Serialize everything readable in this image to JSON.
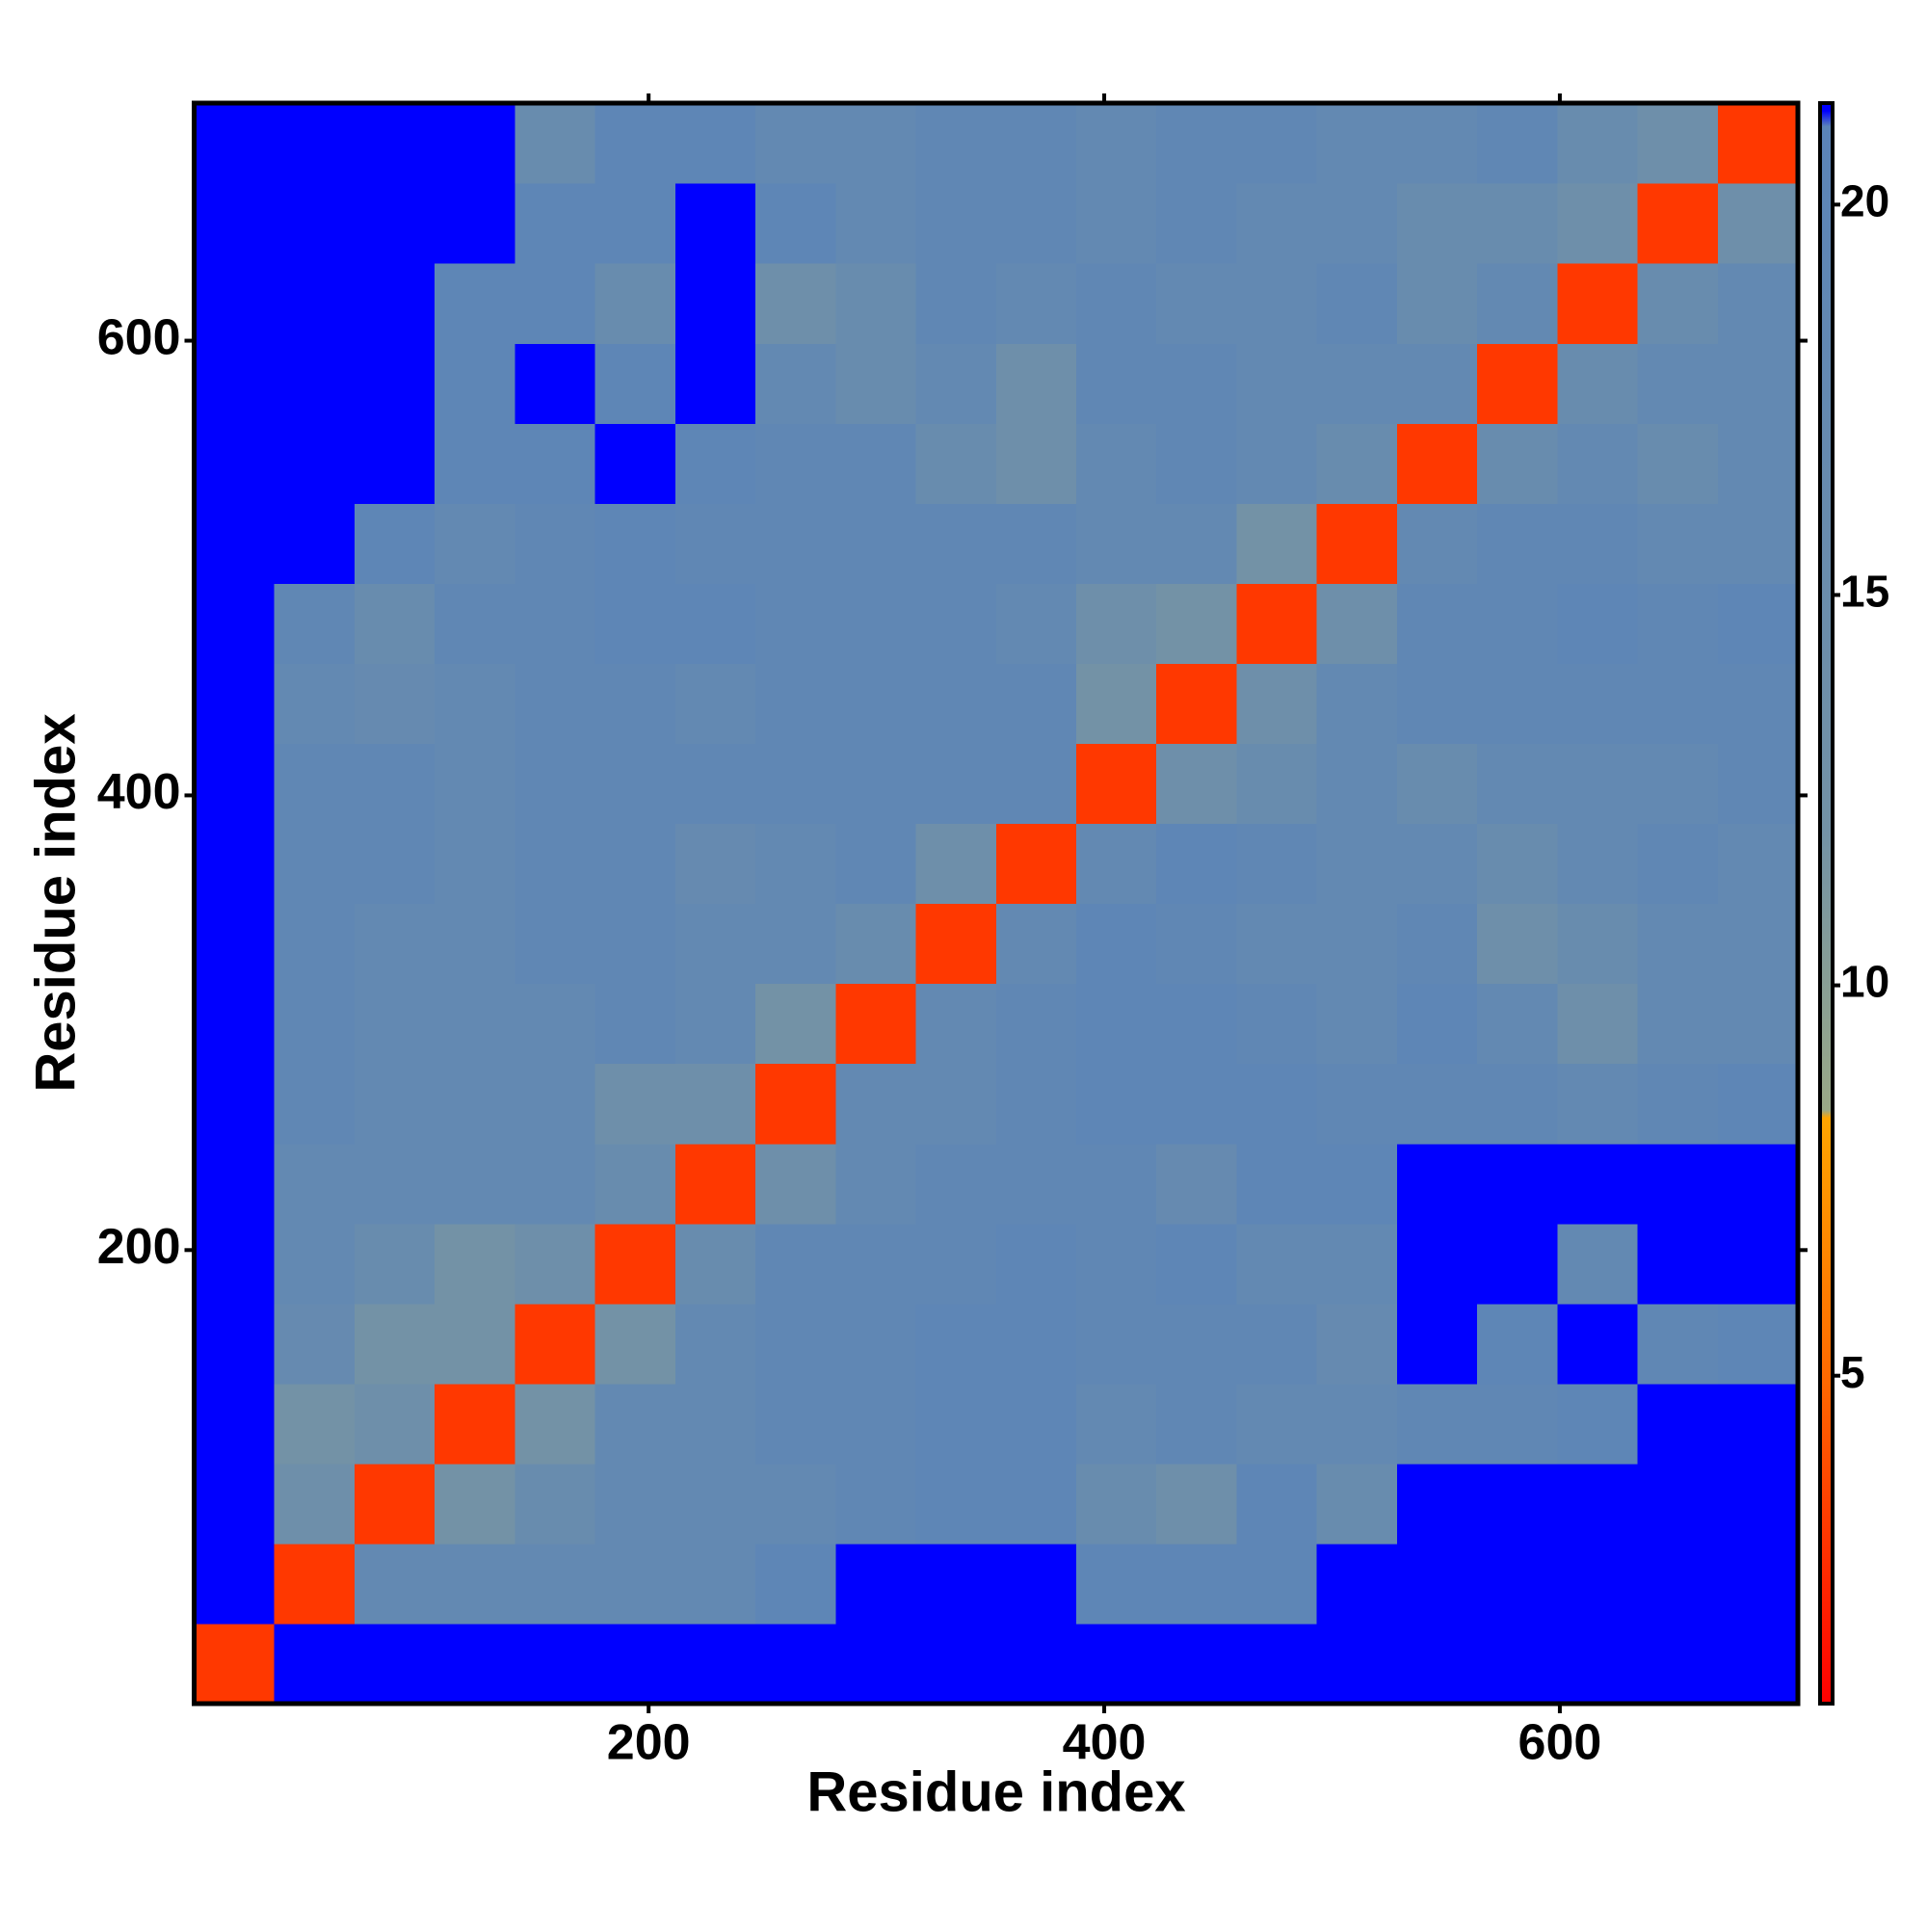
{
  "chart_data": {
    "type": "heatmap",
    "xlabel": "Residue index",
    "ylabel": "Residue index",
    "xlim": [
      0.5,
      704.5
    ],
    "ylim": [
      0.5,
      704.5
    ],
    "xticks": [
      200,
      400,
      600
    ],
    "yticks": [
      200,
      400,
      600
    ],
    "zlim": [
      0.8,
      21.3
    ],
    "zticks": [
      5,
      10,
      15,
      20
    ],
    "colorscale": [
      {
        "value": 0.8,
        "color": "#ff0000"
      },
      {
        "value": 5,
        "color": "#ff6a00"
      },
      {
        "value": 8.3,
        "color": "#ffa500"
      },
      {
        "value": 8.4,
        "color": "#9aa987"
      },
      {
        "value": 12,
        "color": "#7392a6"
      },
      {
        "value": 21,
        "color": "#5b84b8"
      },
      {
        "value": 21.2,
        "color": "#0000ff"
      }
    ],
    "xbins": [
      0.5,
      35.7,
      70.9,
      106.1,
      141.3,
      176.5,
      211.7,
      246.9,
      282.1,
      317.3,
      352.5,
      387.7,
      422.9,
      458.1,
      493.3,
      528.5,
      563.7,
      598.9,
      634.1,
      669.3,
      704.5
    ],
    "ybins": [
      0.5,
      35.7,
      70.9,
      106.1,
      141.3,
      176.5,
      211.7,
      246.9,
      282.1,
      317.3,
      352.5,
      387.7,
      422.9,
      458.1,
      493.3,
      528.5,
      563.7,
      598.9,
      634.1,
      669.3,
      704.5
    ],
    "z": [
      [
        3,
        21.3,
        21.3,
        21.3,
        21.3,
        21.3,
        21.3,
        21.3,
        21.3,
        21.3,
        21.3,
        21.3,
        21.3,
        21.3,
        21.3,
        21.3,
        21.3,
        21.3,
        21.3,
        21.3
      ],
      [
        21.3,
        3,
        18,
        18,
        18,
        18,
        18,
        20,
        21.3,
        21.3,
        21.3,
        20,
        20,
        20,
        21.3,
        21.3,
        21.3,
        21.3,
        21.3,
        21.3
      ],
      [
        21.3,
        14,
        3,
        12,
        16,
        18,
        18,
        18,
        19,
        20,
        20,
        16,
        14,
        20,
        16,
        21.3,
        21.3,
        21.3,
        21.3,
        21.3
      ],
      [
        21.3,
        12,
        14,
        3,
        12,
        18,
        18,
        19,
        19,
        20,
        20,
        18,
        19,
        18,
        18,
        19,
        19,
        20,
        21.3,
        21.3
      ],
      [
        21.3,
        17,
        12,
        12,
        3,
        12,
        18,
        19,
        19,
        20,
        20,
        19,
        19,
        19,
        17,
        21.3,
        20,
        21.3,
        19,
        20
      ],
      [
        21.3,
        18,
        16,
        12,
        14,
        3,
        16,
        19,
        19,
        19,
        20,
        19,
        20,
        18,
        18,
        21.3,
        21.3,
        18,
        21.3,
        21.3
      ],
      [
        21.3,
        18,
        18,
        18,
        18,
        16,
        3,
        14,
        18,
        19,
        19,
        19,
        17,
        20,
        20,
        21.3,
        21.3,
        21.3,
        21.3,
        21.3
      ],
      [
        21.3,
        19,
        18,
        18,
        18,
        14,
        14,
        3,
        18,
        18,
        19,
        20,
        20,
        20,
        19,
        19,
        19,
        18,
        19,
        20
      ],
      [
        21.3,
        19,
        18,
        18,
        18,
        19,
        18,
        12,
        3,
        18,
        19,
        20,
        20,
        19,
        18,
        20,
        18,
        14,
        18,
        18
      ],
      [
        21.3,
        19,
        18,
        18,
        19,
        19,
        18,
        18,
        16,
        3,
        18,
        20,
        19,
        18,
        18,
        19,
        14,
        16,
        18,
        18
      ],
      [
        21.3,
        19,
        19,
        18,
        19,
        19,
        17,
        18,
        19,
        14,
        3,
        18,
        20,
        19,
        18,
        18,
        16,
        18,
        19,
        18
      ],
      [
        21.3,
        19,
        19,
        18,
        19,
        19,
        19,
        19,
        19,
        19,
        19,
        3,
        14,
        16,
        18,
        16,
        18,
        18,
        18,
        19
      ],
      [
        21.3,
        18,
        17,
        18,
        19,
        19,
        18,
        19,
        19,
        19,
        19,
        12,
        3,
        14,
        18,
        19,
        19,
        19,
        19,
        19
      ],
      [
        21.3,
        19,
        16,
        19,
        19,
        20,
        20,
        19,
        19,
        19,
        18,
        14,
        12,
        3,
        14,
        19,
        19,
        20,
        19,
        20
      ],
      [
        21.3,
        21.3,
        20,
        18,
        19,
        20,
        19,
        19,
        19,
        19,
        19,
        18,
        18,
        12,
        3,
        18,
        19,
        19,
        18,
        18
      ],
      [
        21.3,
        21.3,
        21.3,
        20,
        20,
        21.3,
        20,
        19,
        19,
        16,
        14,
        18,
        19,
        18,
        16,
        3,
        16,
        18,
        16,
        18
      ],
      [
        21.3,
        21.3,
        21.3,
        20,
        21.3,
        20,
        21.3,
        18,
        16,
        18,
        14,
        19,
        19,
        18,
        18,
        18,
        3,
        16,
        18,
        18
      ],
      [
        21.3,
        21.3,
        21.3,
        20,
        20,
        16,
        21.3,
        14,
        16,
        19,
        18,
        19,
        18,
        18,
        19,
        16,
        18,
        3,
        16,
        18
      ],
      [
        21.3,
        21.3,
        21.3,
        21.3,
        20,
        20,
        21.3,
        20,
        18,
        19,
        19,
        18,
        19,
        18,
        18,
        16,
        16,
        14,
        3,
        14
      ],
      [
        21.3,
        21.3,
        21.3,
        21.3,
        16,
        20,
        20,
        18,
        18,
        19,
        19,
        18,
        19,
        19,
        18,
        18,
        19,
        16,
        14,
        3
      ]
    ]
  }
}
